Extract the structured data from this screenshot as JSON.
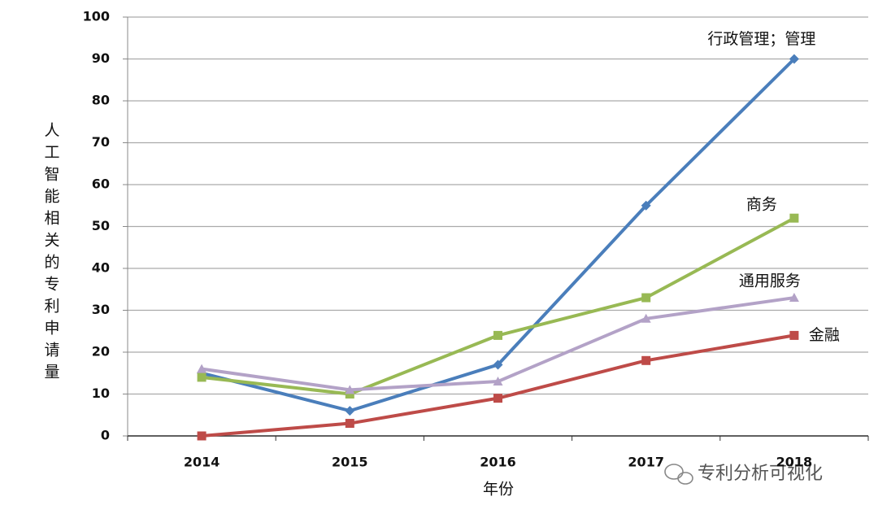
{
  "chart_data": {
    "type": "line",
    "y_label": "人工智能相关的专利申请量",
    "x_label": "年份",
    "watermark": "专利分析可视化",
    "categories": [
      "2014",
      "2015",
      "2016",
      "2017",
      "2018"
    ],
    "series": [
      {
        "name": "行政管理；管理",
        "color": "#4a7ebb",
        "marker": "diamond",
        "values": [
          15,
          6,
          17,
          55,
          90
        ]
      },
      {
        "name": "商务",
        "color": "#98b954",
        "marker": "square",
        "values": [
          14,
          10,
          24,
          33,
          52
        ]
      },
      {
        "name": "通用服务",
        "color": "#b3a2c7",
        "marker": "triangle",
        "values": [
          16,
          11,
          13,
          28,
          33
        ]
      },
      {
        "name": "金融",
        "color": "#be4b48",
        "marker": "square",
        "values": [
          0,
          3,
          9,
          18,
          24
        ]
      }
    ],
    "ylim": [
      0,
      100
    ],
    "yticks": [
      0,
      10,
      20,
      30,
      40,
      50,
      60,
      70,
      80,
      90,
      100
    ],
    "grid": true
  }
}
